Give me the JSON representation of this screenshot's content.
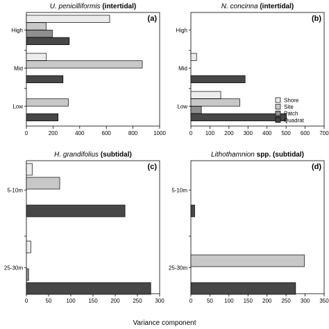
{
  "x_axis_label": "Variance component",
  "legend": {
    "placement": "right, inside panel (b)",
    "entries": [
      {
        "name": "Shore",
        "color": "#ececec"
      },
      {
        "name": "Site",
        "color": "#c8c8c8"
      },
      {
        "name": "Patch",
        "color": "#8e8e8e"
      },
      {
        "name": "Quadrat",
        "color": "#474747"
      }
    ]
  },
  "chart_data": [
    {
      "type": "bar",
      "orientation": "horizontal",
      "title_species": "U. penicilliformis",
      "title_suffix": "(intertidal)",
      "panel_label": "(a)",
      "groups": [
        "High",
        "Mid",
        "Low"
      ],
      "series": [
        {
          "name": "Shore",
          "values": [
            625,
            150,
            null
          ]
        },
        {
          "name": "Site",
          "values": [
            148,
            870,
            315
          ]
        },
        {
          "name": "Patch",
          "values": [
            195,
            null,
            null
          ]
        },
        {
          "name": "Quadrat",
          "values": [
            322,
            275,
            238
          ]
        }
      ],
      "xlim": [
        0,
        1000
      ],
      "xticks": [
        0,
        200,
        400,
        600,
        800,
        1000
      ]
    },
    {
      "type": "bar",
      "orientation": "horizontal",
      "title_species": "N. concinna",
      "title_suffix": "(intertidal)",
      "panel_label": "(b)",
      "groups": [
        "High",
        "Mid",
        "Low"
      ],
      "series": [
        {
          "name": "Shore",
          "values": [
            null,
            30,
            157
          ]
        },
        {
          "name": "Site",
          "values": [
            null,
            null,
            257
          ]
        },
        {
          "name": "Patch",
          "values": [
            null,
            null,
            55
          ]
        },
        {
          "name": "Quadrat",
          "values": [
            null,
            285,
            502
          ]
        }
      ],
      "xlim": [
        0,
        700
      ],
      "xticks": [
        0,
        100,
        200,
        300,
        400,
        500,
        600,
        700
      ]
    },
    {
      "type": "bar",
      "orientation": "horizontal",
      "title_species": "H. grandifolius",
      "title_suffix": "(subtidal)",
      "panel_label": "(c)",
      "groups": [
        "5-10m",
        "25-30m"
      ],
      "series": [
        {
          "name": "Shore",
          "values": [
            13,
            10
          ]
        },
        {
          "name": "Site",
          "values": [
            75,
            null
          ]
        },
        {
          "name": "Patch",
          "values": [
            null,
            5
          ]
        },
        {
          "name": "Quadrat",
          "values": [
            222,
            280
          ]
        }
      ],
      "xlim": [
        0,
        300
      ],
      "xticks": [
        0,
        50,
        100,
        150,
        200,
        250,
        300
      ]
    },
    {
      "type": "bar",
      "orientation": "horizontal",
      "title_species": "Lithothamnion",
      "title_suffix": "spp. (subtidal)",
      "panel_label": "(d)",
      "groups": [
        "5-10m",
        "25-30m"
      ],
      "series": [
        {
          "name": "Shore",
          "values": [
            null,
            null
          ]
        },
        {
          "name": "Site",
          "values": [
            null,
            298
          ]
        },
        {
          "name": "Patch",
          "values": [
            null,
            null
          ]
        },
        {
          "name": "Quadrat",
          "values": [
            10,
            275
          ]
        }
      ],
      "xlim": [
        0,
        350
      ],
      "xticks": [
        0,
        50,
        100,
        150,
        200,
        250,
        300,
        350
      ]
    }
  ]
}
